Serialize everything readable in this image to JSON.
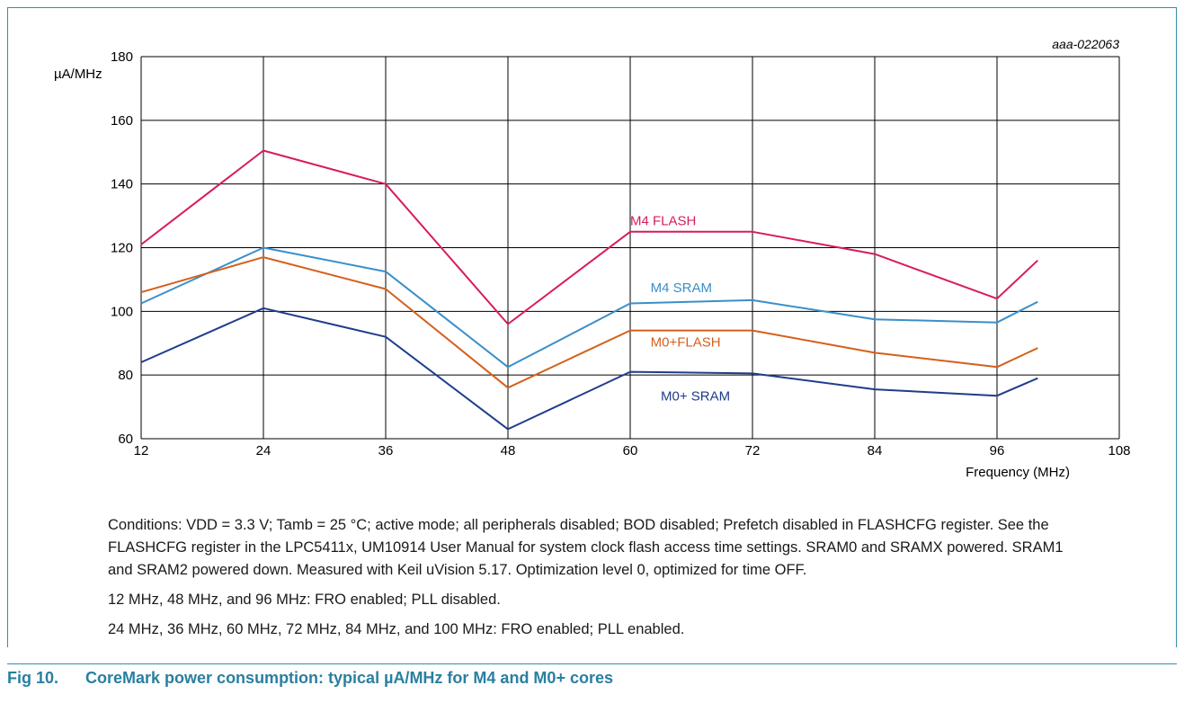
{
  "figure": {
    "code": "aaa-022063",
    "number": "Fig 10.",
    "caption": "CoreMark power consumption: typical µA/MHz for M4 and M0+ cores"
  },
  "notes": [
    "Conditions: VDD = 3.3 V; Tamb = 25 °C; active mode; all peripherals disabled; BOD disabled; Prefetch disabled in FLASHCFG register. See the FLASHCFG register in the LPC5411x, UM10914 User Manual for system clock flash access time settings. SRAM0 and SRAMX powered. SRAM1 and SRAM2 powered down. Measured with Keil uVision 5.17. Optimization level 0, optimized for time OFF.",
    "12 MHz, 48 MHz, and 96 MHz: FRO enabled; PLL disabled.",
    "24 MHz, 36 MHz, 60 MHz, 72 MHz, 84 MHz, and 100 MHz: FRO enabled; PLL enabled."
  ],
  "chart_data": {
    "type": "line",
    "xlabel": "Frequency (MHz)",
    "ylabel": "µA/MHz",
    "xlim": [
      12,
      108
    ],
    "ylim": [
      60,
      180
    ],
    "xticks": [
      12,
      24,
      36,
      48,
      60,
      72,
      84,
      96,
      108
    ],
    "yticks": [
      60,
      80,
      100,
      120,
      140,
      160,
      180
    ],
    "grid": true,
    "x": [
      12,
      24,
      36,
      48,
      60,
      72,
      84,
      96,
      100
    ],
    "series": [
      {
        "name": "M4 FLASH",
        "color": "#d81b60",
        "values": [
          121,
          150.5,
          140,
          96,
          125,
          125,
          118,
          104,
          116
        ],
        "label_at": [
          60,
          127
        ]
      },
      {
        "name": "M4 SRAM",
        "color": "#3a8fc9",
        "values": [
          102.5,
          120,
          112.5,
          82.5,
          102.5,
          103.5,
          97.5,
          96.5,
          103
        ],
        "label_at": [
          62,
          106
        ]
      },
      {
        "name": "M0+FLASH",
        "color": "#d4601c",
        "values": [
          106,
          117,
          107,
          76,
          94,
          94,
          87,
          82.5,
          88.5
        ],
        "label_at": [
          62,
          89
        ]
      },
      {
        "name": "M0+ SRAM",
        "color": "#1f3d8c",
        "values": [
          84,
          101,
          92,
          63,
          81,
          80.5,
          75.5,
          73.5,
          79
        ],
        "label_at": [
          63,
          72
        ]
      }
    ]
  }
}
